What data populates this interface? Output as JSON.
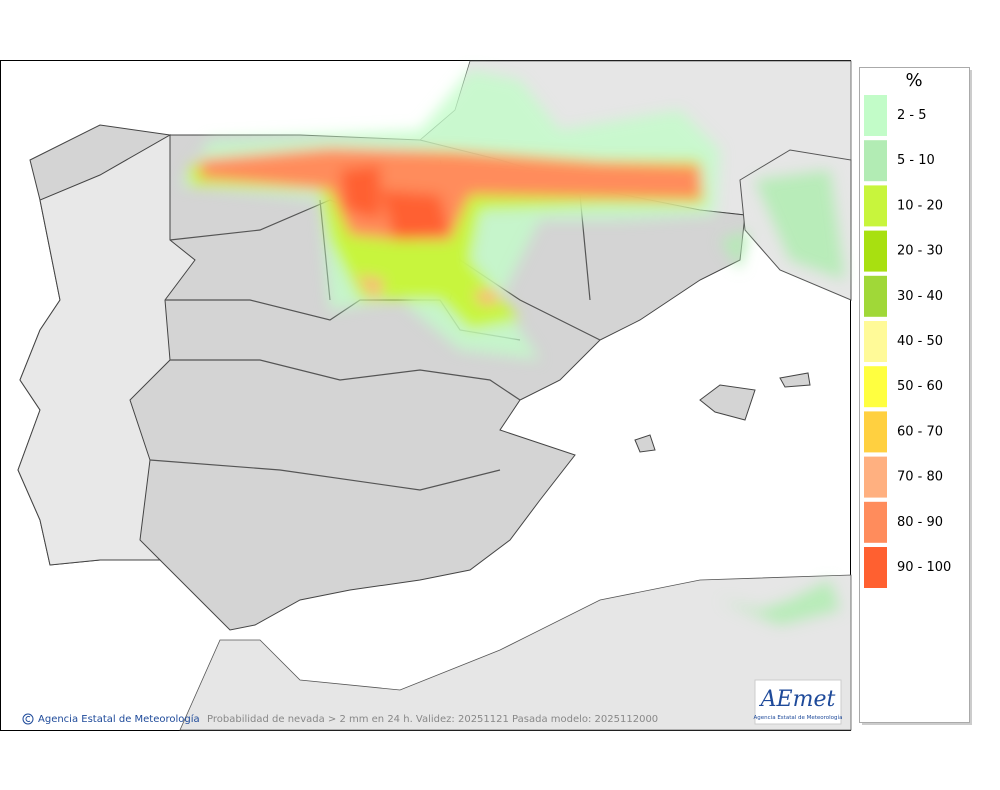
{
  "legend": {
    "title": "%",
    "items": [
      {
        "label": "2 - 5",
        "color": "#c2fcc8"
      },
      {
        "label": "5 - 10",
        "color": "#b2ecb4"
      },
      {
        "label": "10 - 20",
        "color": "#c8f53c"
      },
      {
        "label": "20 - 30",
        "color": "#a8e010"
      },
      {
        "label": "30 - 40",
        "color": "#a0d838"
      },
      {
        "label": "40 - 50",
        "color": "#fffa98"
      },
      {
        "label": "50 - 60",
        "color": "#ffff40"
      },
      {
        "label": "60 - 70",
        "color": "#ffd040"
      },
      {
        "label": "70 - 80",
        "color": "#ffb080"
      },
      {
        "label": "80 - 90",
        "color": "#ff8c5c"
      },
      {
        "label": "90 - 100",
        "color": "#ff6030"
      }
    ]
  },
  "footer": {
    "copyright": "Agencia Estatal de Meteorología",
    "caption": "Probabilidad de nevada > 2 mm en 24 h. Validez: 20251121 Pasada modelo: 2025112000"
  },
  "logo": {
    "name": "AEmet",
    "subtitle": "Agencia Estatal de Meteorología"
  }
}
